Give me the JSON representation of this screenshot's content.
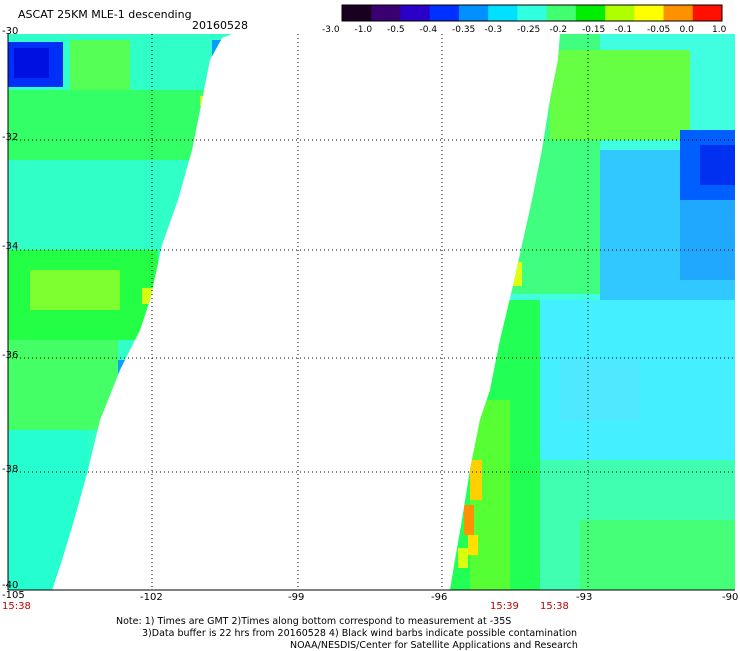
{
  "header": {
    "title": "ASCAT 25KM MLE-1 descending",
    "date": "20160528"
  },
  "colorbar": {
    "labels": [
      "-3.0",
      "-1.0",
      "-0.5",
      "-0.4",
      "-0.35",
      "-0.3",
      "-0.25",
      "-0.2",
      "-0.15",
      "-0.1",
      "-0.05",
      "0.0",
      "1.0"
    ],
    "colors": [
      "#1a0020",
      "#3a0070",
      "#2a00c8",
      "#0030ff",
      "#0090ff",
      "#00e0ff",
      "#30ffe0",
      "#40ff70",
      "#00ee00",
      "#b0ff00",
      "#ffff00",
      "#ff9000",
      "#ff1000"
    ]
  },
  "axes": {
    "y_labels": [
      "-30",
      "-32",
      "-34",
      "-36",
      "-38",
      "-40"
    ],
    "x_labels": [
      "-105",
      "-102",
      "-99",
      "-96",
      "-93",
      "-90"
    ]
  },
  "times": [
    "15:38",
    "15:39",
    "15:38"
  ],
  "notes": {
    "line1": "Note: 1) Times are GMT 2)Times along bottom correspond to measurement at -35S",
    "line2": "3)Data buffer is 22 hrs from 20160528 4) Black wind barbs indicate possible contamination",
    "line3": "NOAA/NESDIS/Center for Satellite Applications and Research"
  }
}
